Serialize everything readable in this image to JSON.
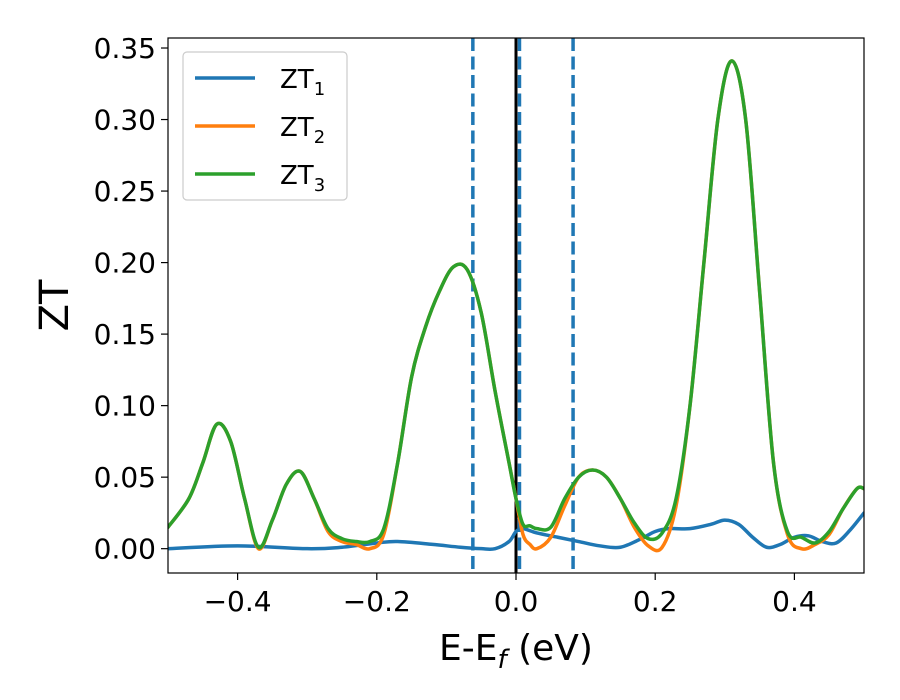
{
  "chart_data": {
    "type": "line",
    "xlabel": "E-E",
    "xlabel_sub": "f",
    "xlabel_unit": " (eV)",
    "ylabel": "ZT",
    "xlim": [
      -0.5,
      0.5
    ],
    "ylim": [
      -0.017,
      0.357
    ],
    "xticks": [
      -0.4,
      -0.2,
      0.0,
      0.2,
      0.4
    ],
    "xtick_labels": [
      "−0.4",
      "−0.2",
      "0.0",
      "0.2",
      "0.4"
    ],
    "yticks": [
      0.0,
      0.05,
      0.1,
      0.15,
      0.2,
      0.25,
      0.3,
      0.35
    ],
    "ytick_labels": [
      "0.00",
      "0.05",
      "0.10",
      "0.15",
      "0.20",
      "0.25",
      "0.30",
      "0.35"
    ],
    "grid": false,
    "legend_position": "top-left",
    "vertical_lines": [
      {
        "x": 0.0,
        "style": "solid",
        "color": "#000000"
      },
      {
        "x": -0.062,
        "style": "dashed",
        "color": "#1f77b4"
      },
      {
        "x": 0.005,
        "style": "dashed",
        "color": "#1f77b4"
      },
      {
        "x": 0.082,
        "style": "dashed",
        "color": "#1f77b4"
      }
    ],
    "series": [
      {
        "name": "ZT",
        "name_sub": "1",
        "color": "#1f77b4",
        "x": [
          -0.5,
          -0.4,
          -0.3,
          -0.25,
          -0.2,
          -0.17,
          -0.12,
          -0.08,
          -0.05,
          -0.03,
          -0.01,
          0.0,
          0.01,
          0.03,
          0.06,
          0.09,
          0.12,
          0.15,
          0.18,
          0.2,
          0.22,
          0.25,
          0.28,
          0.3,
          0.32,
          0.34,
          0.36,
          0.38,
          0.4,
          0.42,
          0.44,
          0.46,
          0.48,
          0.5
        ],
        "y": [
          0.0,
          0.002,
          0.0,
          0.001,
          0.004,
          0.005,
          0.003,
          0.001,
          0.0,
          0.0,
          0.005,
          0.012,
          0.014,
          0.011,
          0.008,
          0.005,
          0.002,
          0.001,
          0.007,
          0.012,
          0.014,
          0.014,
          0.017,
          0.02,
          0.017,
          0.008,
          0.001,
          0.003,
          0.008,
          0.009,
          0.005,
          0.004,
          0.013,
          0.025
        ]
      },
      {
        "name": "ZT",
        "name_sub": "2",
        "color": "#ff7f0e",
        "x": [
          -0.5,
          -0.47,
          -0.45,
          -0.43,
          -0.41,
          -0.39,
          -0.37,
          -0.35,
          -0.33,
          -0.31,
          -0.29,
          -0.27,
          -0.25,
          -0.23,
          -0.21,
          -0.19,
          -0.17,
          -0.15,
          -0.13,
          -0.11,
          -0.09,
          -0.07,
          -0.05,
          -0.03,
          -0.01,
          0.0,
          0.01,
          0.02,
          0.03,
          0.05,
          0.07,
          0.09,
          0.11,
          0.13,
          0.15,
          0.17,
          0.19,
          0.21,
          0.23,
          0.25,
          0.27,
          0.29,
          0.31,
          0.33,
          0.35,
          0.37,
          0.39,
          0.41,
          0.43,
          0.45,
          0.47,
          0.49,
          0.5
        ],
        "y": [
          0.015,
          0.035,
          0.06,
          0.087,
          0.075,
          0.035,
          0.0,
          0.02,
          0.045,
          0.054,
          0.035,
          0.012,
          0.005,
          0.003,
          0.0,
          0.01,
          0.06,
          0.12,
          0.155,
          0.18,
          0.197,
          0.195,
          0.165,
          0.11,
          0.06,
          0.035,
          0.01,
          0.003,
          0.0,
          0.008,
          0.03,
          0.05,
          0.055,
          0.05,
          0.035,
          0.015,
          0.002,
          0.001,
          0.03,
          0.1,
          0.2,
          0.3,
          0.341,
          0.3,
          0.18,
          0.06,
          0.01,
          0.0,
          0.003,
          0.01,
          0.028,
          0.042,
          0.042
        ]
      },
      {
        "name": "ZT",
        "name_sub": "3",
        "color": "#2ca02c",
        "x": [
          -0.5,
          -0.47,
          -0.45,
          -0.43,
          -0.41,
          -0.39,
          -0.37,
          -0.35,
          -0.33,
          -0.31,
          -0.29,
          -0.27,
          -0.25,
          -0.23,
          -0.21,
          -0.19,
          -0.17,
          -0.15,
          -0.13,
          -0.11,
          -0.09,
          -0.07,
          -0.05,
          -0.03,
          -0.01,
          0.0,
          0.01,
          0.02,
          0.03,
          0.05,
          0.07,
          0.09,
          0.11,
          0.13,
          0.15,
          0.17,
          0.19,
          0.21,
          0.23,
          0.25,
          0.27,
          0.29,
          0.31,
          0.33,
          0.35,
          0.37,
          0.39,
          0.41,
          0.43,
          0.45,
          0.47,
          0.49,
          0.5
        ],
        "y": [
          0.015,
          0.035,
          0.06,
          0.087,
          0.075,
          0.035,
          0.001,
          0.02,
          0.045,
          0.054,
          0.035,
          0.014,
          0.007,
          0.005,
          0.005,
          0.014,
          0.06,
          0.12,
          0.155,
          0.18,
          0.197,
          0.195,
          0.165,
          0.11,
          0.06,
          0.035,
          0.017,
          0.016,
          0.014,
          0.015,
          0.035,
          0.05,
          0.055,
          0.05,
          0.035,
          0.018,
          0.007,
          0.011,
          0.035,
          0.1,
          0.2,
          0.3,
          0.341,
          0.3,
          0.18,
          0.06,
          0.012,
          0.008,
          0.004,
          0.012,
          0.028,
          0.042,
          0.042
        ]
      }
    ]
  }
}
